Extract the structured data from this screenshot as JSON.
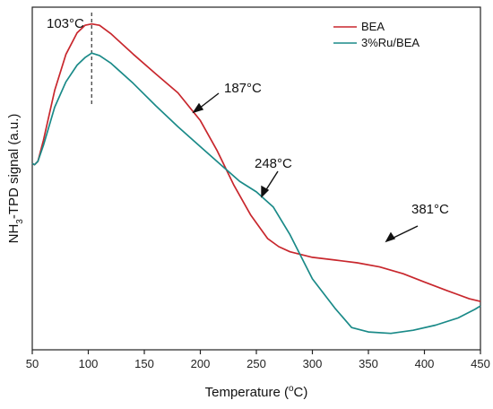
{
  "chart_data": {
    "type": "line",
    "xlabel": "Temperature (°C)",
    "ylabel": "NH3-TPD signal (a.u.)",
    "xlim": [
      50,
      450
    ],
    "ylim": [
      0,
      100
    ],
    "x_ticks": [
      50,
      100,
      150,
      200,
      250,
      300,
      350,
      400,
      450
    ],
    "grid": false,
    "legend_position": "top-right",
    "series": [
      {
        "name": "BEA",
        "color": "#c8272d",
        "x": [
          50,
          52,
          55,
          60,
          70,
          80,
          90,
          97,
          103,
          110,
          120,
          140,
          160,
          180,
          200,
          215,
          230,
          245,
          260,
          270,
          280,
          300,
          320,
          340,
          360,
          381,
          400,
          420,
          440,
          450
        ],
        "y": [
          54.4,
          54.0,
          55.0,
          61.2,
          75.7,
          86.2,
          92.5,
          94.7,
          95.1,
          94.7,
          92.3,
          86.3,
          80.6,
          75.0,
          66.9,
          58.1,
          48.0,
          39.3,
          32.5,
          30.1,
          28.6,
          27.0,
          26.2,
          25.4,
          24.2,
          22.2,
          19.8,
          17.3,
          14.9,
          14.1
        ]
      },
      {
        "name": "3%Ru/BEA",
        "color": "#1a8a88",
        "x": [
          50,
          52,
          55,
          60,
          70,
          80,
          90,
          97,
          103,
          110,
          120,
          140,
          160,
          180,
          200,
          220,
          235,
          250,
          265,
          280,
          300,
          320,
          335,
          350,
          370,
          390,
          410,
          430,
          445,
          450
        ],
        "y": [
          54.4,
          54.0,
          55.0,
          59.7,
          70.8,
          78.2,
          83.1,
          85.3,
          86.6,
          85.9,
          83.7,
          77.8,
          71.3,
          65.1,
          59.3,
          53.5,
          49.2,
          46.1,
          41.7,
          33.6,
          20.7,
          12.2,
          6.5,
          5.2,
          4.8,
          5.7,
          7.2,
          9.3,
          11.8,
          12.8
        ]
      }
    ],
    "annotations": [
      "103°C",
      "187°C",
      "248°C",
      "381°C"
    ]
  },
  "legend": [
    {
      "label": "BEA",
      "color": "#c8272d"
    },
    {
      "label": "3%Ru/BEA",
      "color": "#1a8a88"
    }
  ],
  "axis_labels": {
    "x_main": "Temperature (",
    "x_unit_sup": "o",
    "x_unit_tail": "C)",
    "y_prefix": "NH",
    "y_sub": "3",
    "y_rest": "-TPD signal (a.u.)"
  },
  "annotations": [
    {
      "label": "103°C"
    },
    {
      "label": "187°C"
    },
    {
      "label": "248°C"
    },
    {
      "label": "381°C"
    }
  ]
}
